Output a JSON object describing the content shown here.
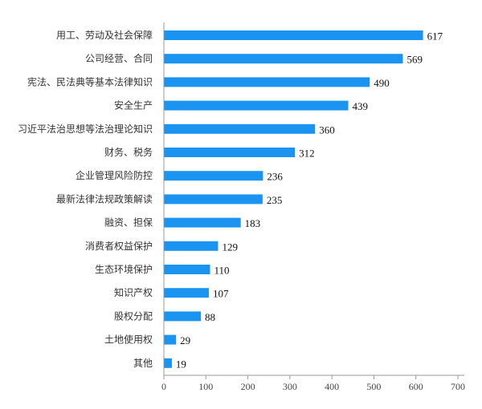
{
  "chart_data": {
    "type": "bar",
    "orientation": "horizontal",
    "categories": [
      "用工、劳动及社会保障",
      "公司经营、合同",
      "宪法、民法典等基本法律知识",
      "安全生产",
      "习近平法治思想等法治理论知识",
      "财务、税务",
      "企业管理风险防控",
      "最新法律法规政策解读",
      "融资、担保",
      "消费者权益保护",
      "生态环境保护",
      "知识产权",
      "股权分配",
      "土地使用权",
      "其他"
    ],
    "values": [
      617,
      569,
      490,
      439,
      360,
      312,
      236,
      235,
      183,
      129,
      110,
      107,
      88,
      29,
      19
    ],
    "xlim": [
      0,
      700
    ],
    "xticks": [
      "0",
      "100",
      "200",
      "300",
      "400",
      "500",
      "600",
      "700"
    ],
    "bar_color": "#1a94f0",
    "grid": false,
    "legend": "none",
    "data_labels": true
  }
}
